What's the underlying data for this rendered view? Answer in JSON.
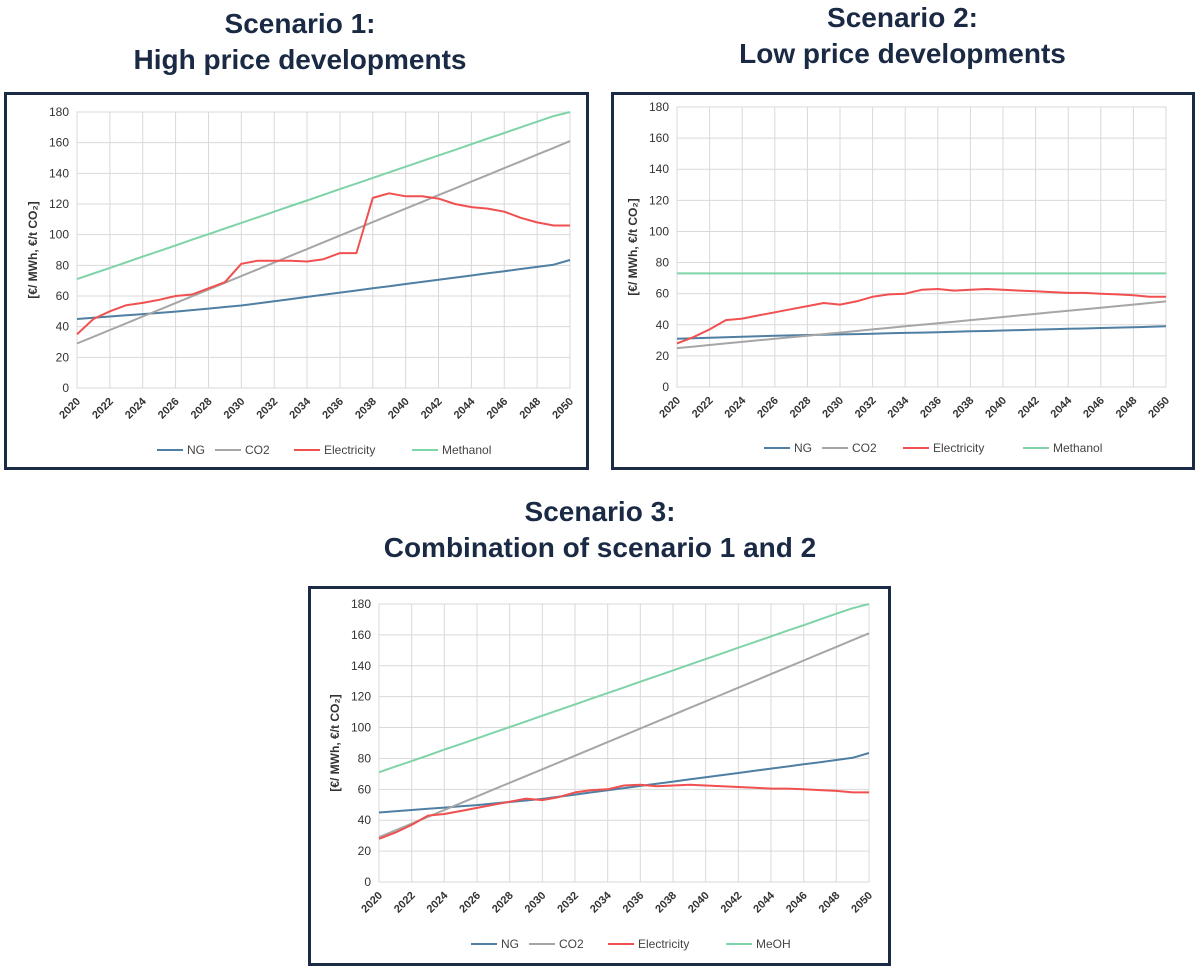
{
  "headings": [
    {
      "line1": "Scenario 1:",
      "line2": "High price developments"
    },
    {
      "line1": "Scenario 2:",
      "line2": "Low price developments"
    },
    {
      "line1": "Scenario 3:",
      "line2": "Combination of scenario 1 and 2"
    }
  ],
  "colors": {
    "NG": "#4f7fa3",
    "CO2": "#a6a6a6",
    "Electricity": "#f0504f",
    "Methanol": "#7fd3a8",
    "frame": "#1c2b45",
    "heading": "#1b2a44"
  },
  "chart_data": [
    {
      "type": "line",
      "ylabel": "[€/ MWh,  €/t CO₂]",
      "ylim": [
        0,
        180
      ],
      "yticks": [
        0,
        20,
        40,
        60,
        80,
        100,
        120,
        140,
        160,
        180
      ],
      "xticks": [
        "2020",
        "2022",
        "2024",
        "2026",
        "2028",
        "2030",
        "2032",
        "2034",
        "2036",
        "2038",
        "2040",
        "2042",
        "2044",
        "2046",
        "2048",
        "2050"
      ],
      "grid": true,
      "legend": "bottom",
      "x": [
        2020,
        2021,
        2022,
        2023,
        2024,
        2025,
        2026,
        2027,
        2028,
        2029,
        2030,
        2031,
        2032,
        2033,
        2034,
        2035,
        2036,
        2037,
        2038,
        2039,
        2040,
        2041,
        2042,
        2043,
        2044,
        2045,
        2046,
        2047,
        2048,
        2049,
        2050
      ],
      "series": [
        {
          "name": "NG",
          "values": [
            45,
            45.8,
            46.6,
            47.4,
            48.2,
            49,
            49.8,
            50.8,
            51.8,
            52.8,
            53.8,
            55.2,
            56.6,
            58,
            59.4,
            60.8,
            62.2,
            63.6,
            65,
            66.4,
            67.8,
            69.2,
            70.6,
            72,
            73.4,
            74.8,
            76.2,
            77.6,
            79,
            80.4,
            83.5
          ]
        },
        {
          "name": "CO2",
          "values": [
            29,
            33.4,
            37.8,
            42.2,
            46.6,
            51,
            55.4,
            59.8,
            64.2,
            68.6,
            73,
            77.4,
            81.8,
            86.2,
            90.6,
            95,
            99.4,
            103.8,
            108.2,
            112.6,
            117,
            121.4,
            125.8,
            130.2,
            134.6,
            139,
            143.4,
            147.8,
            152.2,
            156.6,
            161
          ]
        },
        {
          "name": "Electricity",
          "values": [
            35,
            45,
            50,
            54,
            55.5,
            57.5,
            60,
            61,
            65,
            69,
            81,
            83,
            83,
            83,
            82.5,
            84,
            88,
            88,
            124,
            127,
            125,
            125,
            123.5,
            120,
            118,
            117,
            115,
            111,
            108,
            106,
            106
          ]
        },
        {
          "name": "Methanol",
          "values": [
            71,
            74.7,
            78.3,
            82,
            85.7,
            89.3,
            93,
            96.7,
            100.3,
            104,
            107.7,
            111.3,
            115,
            118.7,
            122.3,
            126,
            129.7,
            133.3,
            137,
            140.7,
            144.3,
            148,
            151.7,
            155.3,
            159,
            162.7,
            166.3,
            170,
            173.7,
            177.3,
            180
          ]
        }
      ]
    },
    {
      "type": "line",
      "ylabel": "[€/ MWh,  €/t CO₂]",
      "ylim": [
        0,
        180
      ],
      "yticks": [
        0,
        20,
        40,
        60,
        80,
        100,
        120,
        140,
        160,
        180
      ],
      "xticks": [
        "2020",
        "2022",
        "2024",
        "2026",
        "2028",
        "2030",
        "2032",
        "2034",
        "2036",
        "2038",
        "2040",
        "2042",
        "2044",
        "2046",
        "2048",
        "2050"
      ],
      "grid": true,
      "legend": "bottom",
      "x": [
        2020,
        2021,
        2022,
        2023,
        2024,
        2025,
        2026,
        2027,
        2028,
        2029,
        2030,
        2031,
        2032,
        2033,
        2034,
        2035,
        2036,
        2037,
        2038,
        2039,
        2040,
        2041,
        2042,
        2043,
        2044,
        2045,
        2046,
        2047,
        2048,
        2049,
        2050
      ],
      "series": [
        {
          "name": "NG",
          "values": [
            31,
            31.3,
            31.7,
            32,
            32.3,
            32.6,
            33,
            33.2,
            33.4,
            33.6,
            33.8,
            34,
            34.2,
            34.5,
            34.8,
            35,
            35.2,
            35.5,
            35.8,
            36,
            36.3,
            36.6,
            36.9,
            37.1,
            37.4,
            37.6,
            37.9,
            38.2,
            38.4,
            38.7,
            39
          ]
        },
        {
          "name": "CO2",
          "values": [
            25,
            26,
            27,
            28,
            29,
            30,
            31,
            32,
            33,
            34,
            35,
            36,
            37,
            38,
            39,
            40,
            41,
            42,
            43,
            44,
            45,
            46,
            47,
            48,
            49,
            50,
            51,
            52,
            53,
            54,
            55
          ]
        },
        {
          "name": "Electricity",
          "values": [
            28,
            32,
            37,
            43,
            44,
            46,
            48,
            50,
            52,
            54,
            53,
            55,
            58,
            59.5,
            60,
            62.5,
            63,
            62,
            62.5,
            63,
            62.5,
            62,
            61.5,
            61,
            60.5,
            60.5,
            60,
            59.5,
            59,
            58,
            58
          ]
        },
        {
          "name": "Methanol",
          "values": [
            73,
            73,
            73,
            73,
            73,
            73,
            73,
            73,
            73,
            73,
            73,
            73,
            73,
            73,
            73,
            73,
            73,
            73,
            73,
            73,
            73,
            73,
            73,
            73,
            73,
            73,
            73,
            73,
            73,
            73,
            73
          ]
        }
      ]
    },
    {
      "type": "line",
      "ylabel": "[€/ MWh,  €/t CO₂]",
      "ylim": [
        0,
        180
      ],
      "yticks": [
        0,
        20,
        40,
        60,
        80,
        100,
        120,
        140,
        160,
        180
      ],
      "xticks": [
        "2020",
        "2022",
        "2024",
        "2026",
        "2028",
        "2030",
        "2032",
        "2034",
        "2036",
        "2038",
        "2040",
        "2042",
        "2044",
        "2046",
        "2048",
        "2050"
      ],
      "grid": true,
      "legend": "bottom",
      "x": [
        2020,
        2021,
        2022,
        2023,
        2024,
        2025,
        2026,
        2027,
        2028,
        2029,
        2030,
        2031,
        2032,
        2033,
        2034,
        2035,
        2036,
        2037,
        2038,
        2039,
        2040,
        2041,
        2042,
        2043,
        2044,
        2045,
        2046,
        2047,
        2048,
        2049,
        2050
      ],
      "series": [
        {
          "name": "NG",
          "values": [
            45,
            45.8,
            46.6,
            47.4,
            48.2,
            49,
            49.8,
            50.8,
            51.8,
            52.8,
            53.8,
            55.2,
            56.6,
            58,
            59.4,
            60.8,
            62.2,
            63.6,
            65,
            66.4,
            67.8,
            69.2,
            70.6,
            72,
            73.4,
            74.8,
            76.2,
            77.6,
            79,
            80.4,
            83.5
          ]
        },
        {
          "name": "CO2",
          "values": [
            29,
            33.4,
            37.8,
            42.2,
            46.6,
            51,
            55.4,
            59.8,
            64.2,
            68.6,
            73,
            77.4,
            81.8,
            86.2,
            90.6,
            95,
            99.4,
            103.8,
            108.2,
            112.6,
            117,
            121.4,
            125.8,
            130.2,
            134.6,
            139,
            143.4,
            147.8,
            152.2,
            156.6,
            161
          ]
        },
        {
          "name": "Electricity",
          "values": [
            28,
            32,
            37,
            43,
            44,
            46,
            48,
            50,
            52,
            54,
            53,
            55,
            58,
            59.5,
            60,
            62.5,
            63,
            62,
            62.5,
            63,
            62.5,
            62,
            61.5,
            61,
            60.5,
            60.5,
            60,
            59.5,
            59,
            58,
            58
          ]
        },
        {
          "name": "MeOH",
          "values": [
            71,
            74.7,
            78.3,
            82,
            85.7,
            89.3,
            93,
            96.7,
            100.3,
            104,
            107.7,
            111.3,
            115,
            118.7,
            122.3,
            126,
            129.7,
            133.3,
            137,
            140.7,
            144.3,
            148,
            151.7,
            155.3,
            159,
            162.7,
            166.3,
            170,
            173.7,
            177.3,
            180
          ]
        }
      ]
    }
  ]
}
